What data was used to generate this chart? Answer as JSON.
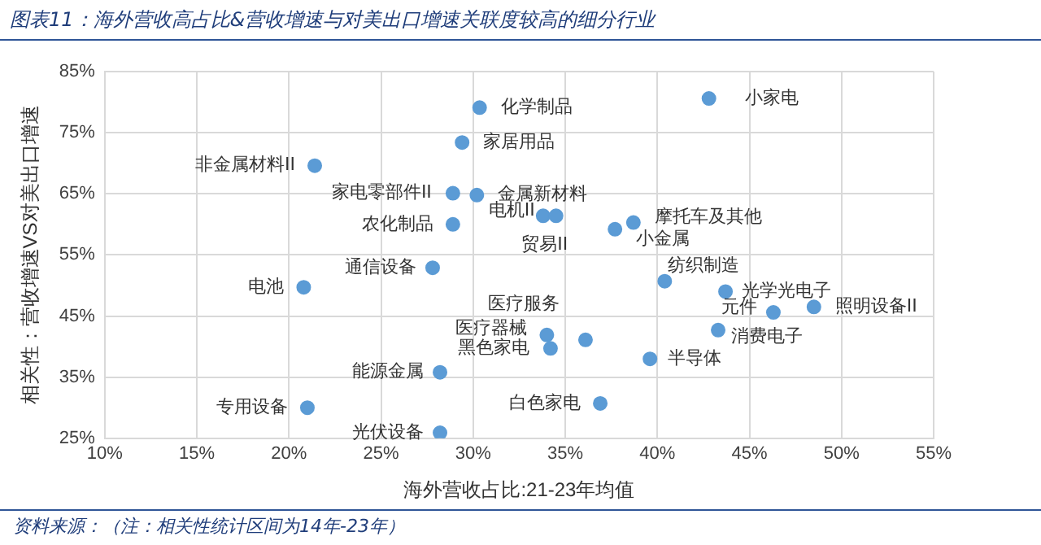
{
  "chart_data": {
    "type": "scatter",
    "title": "图表11：海外营收高占比&营收增速与对美出口增速关联度较高的细分行业",
    "xlabel": "海外营收占比:21-23年均值",
    "ylabel": "相关性：营收增速VS对美出口增速",
    "series": [
      {
        "color": "#5b9bd5",
        "x": [
          30.35,
          42.8,
          29.4,
          21.4,
          28.9,
          30.2,
          28.9,
          33.8,
          34.5,
          38.7,
          37.7,
          27.8,
          20.8,
          28.2,
          21.0,
          28.2,
          40.4,
          43.7,
          46.3,
          48.5,
          43.3,
          34.0,
          34.2,
          36.1,
          39.6,
          36.9
        ],
        "values": [
          79.1,
          80.6,
          73.4,
          69.6,
          65.1,
          64.8,
          60.0,
          61.4,
          61.4,
          60.3,
          59.2,
          52.9,
          49.7,
          35.8,
          30.0,
          25.9,
          50.7,
          49.0,
          45.6,
          46.5,
          42.7,
          41.9,
          39.7,
          41.1,
          38.0,
          30.7
        ]
      }
    ],
    "xlim": [
      10,
      55
    ],
    "xticks": [
      {
        "value": 10,
        "label": "10%"
      },
      {
        "value": 15,
        "label": "15%"
      },
      {
        "value": 20,
        "label": "20%"
      },
      {
        "value": 25,
        "label": "25%"
      },
      {
        "value": 30,
        "label": "30%"
      },
      {
        "value": 35,
        "label": "35%"
      },
      {
        "value": 40,
        "label": "40%"
      },
      {
        "value": 45,
        "label": "45%"
      },
      {
        "value": 50,
        "label": "50%"
      },
      {
        "value": 55,
        "label": "55%"
      }
    ],
    "ylim": [
      25,
      85
    ],
    "yticks": [
      {
        "value": 25,
        "label": "25%"
      },
      {
        "value": 35,
        "label": "35%"
      },
      {
        "value": 45,
        "label": "45%"
      },
      {
        "value": 55,
        "label": "55%"
      },
      {
        "value": 65,
        "label": "65%"
      },
      {
        "value": 75,
        "label": "75%"
      },
      {
        "value": 85,
        "label": "85%"
      }
    ],
    "grid": true,
    "marker": "circle",
    "legend": false,
    "annotations": [
      {
        "text": "化学制品",
        "x": 30.35,
        "y": 79.1
      },
      {
        "text": "小家电",
        "x": 42.8,
        "y": 80.6
      },
      {
        "text": "家居用品",
        "x": 29.4,
        "y": 73.4
      },
      {
        "text": "非金属材料II",
        "x": 21.4,
        "y": 69.6
      },
      {
        "text": "家电零部件II",
        "x": 28.9,
        "y": 65.1
      },
      {
        "text": "金属新材料",
        "x": 30.2,
        "y": 64.8
      },
      {
        "text": "农化制品",
        "x": 28.9,
        "y": 60.0
      },
      {
        "text": "电机II",
        "x": 33.8,
        "y": 61.4
      },
      {
        "text": "贸易II",
        "x": 34.5,
        "y": 61.4
      },
      {
        "text": "摩托车及其他",
        "x": 38.7,
        "y": 60.3
      },
      {
        "text": "小金属",
        "x": 37.7,
        "y": 59.2
      },
      {
        "text": "通信设备",
        "x": 27.8,
        "y": 52.9
      },
      {
        "text": "电池",
        "x": 20.8,
        "y": 49.7
      },
      {
        "text": "能源金属",
        "x": 28.2,
        "y": 35.8
      },
      {
        "text": "专用设备",
        "x": 21.0,
        "y": 30.0
      },
      {
        "text": "光伏设备",
        "x": 28.2,
        "y": 25.9
      },
      {
        "text": "纺织制造",
        "x": 40.4,
        "y": 50.7
      },
      {
        "text": "光学光电子",
        "x": 43.7,
        "y": 49.0
      },
      {
        "text": "元件",
        "x": 46.3,
        "y": 45.6
      },
      {
        "text": "照明设备II",
        "x": 48.5,
        "y": 46.5
      },
      {
        "text": "消费电子",
        "x": 43.3,
        "y": 42.7
      },
      {
        "text": "医疗器械",
        "x": 34.0,
        "y": 41.9
      },
      {
        "text": "黑色家电",
        "x": 34.2,
        "y": 39.7
      },
      {
        "text": "医疗服务",
        "x": 36.1,
        "y": 41.1
      },
      {
        "text": "半导体",
        "x": 39.6,
        "y": 38.0
      },
      {
        "text": "白色家电",
        "x": 36.9,
        "y": 30.7
      },
      "资料来源：（注：相关性统计区间为14年-23年）"
    ]
  }
}
